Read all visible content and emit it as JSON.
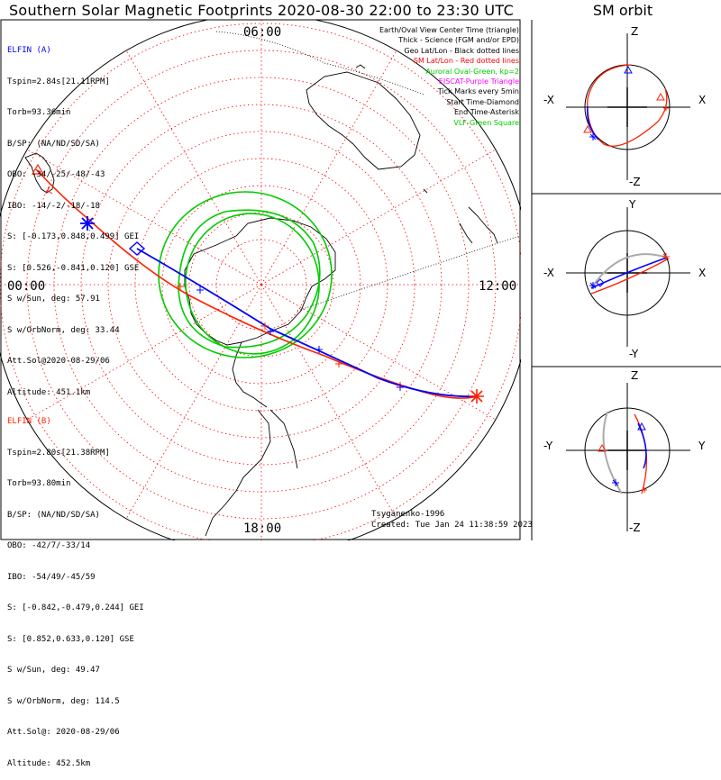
{
  "title": "Southern Solar Magnetic Footprints 2020-08-30 22:00 to 23:30 UTC",
  "side_title": "SM orbit",
  "colors": {
    "probe_a": "#0000ff",
    "probe_b": "#ff2000",
    "oval": "#00cc00",
    "grid": "#ff0000",
    "geo": "#000000",
    "pink": "#ff00ff",
    "orbit_grey": "#aaaaaa"
  },
  "map": {
    "local_time_labels": {
      "top": "06:00",
      "left": "00:00",
      "right": "12:00",
      "bottom": "18:00"
    }
  },
  "elfin_a": {
    "name": "ELFIN (A)",
    "lines": [
      "Tspin=2.84s[21.11RPM]",
      "Torb=93.36min",
      "B/SP: (NA/ND/SD/SA)",
      "OBO: -34/-25/-48/-43",
      "IBO: -14/-2/-18/-18",
      "S: [-0.173,0.848,0.499] GEI",
      "S: [0.526,-0.841,0.120] GSE",
      "S w/Sun, deg: 57.91",
      "S w/OrbNorm, deg: 33.44",
      "Att.Sol@2020-08-29/06",
      "Altitude: 451.1km"
    ]
  },
  "elfin_b": {
    "name": "ELFIN (B)",
    "lines": [
      "Tspin=2.80s[21.38RPM]",
      "Torb=93.80min",
      "B/SP: (NA/ND/SD/SA)",
      "OBO: -42/7/-33/14",
      "IBO: -54/49/-45/59",
      "S: [-0.842,-0.479,0.244] GEI",
      "S: [0.852,0.633,0.120] GSE",
      "S w/Sun, deg: 49.47",
      "S w/OrbNorm, deg: 114.5",
      "Att.Sol@: 2020-08-29/06",
      "Altitude: 452.5km"
    ]
  },
  "legend": [
    {
      "text": "Earth/Oval View Center Time (triangle)",
      "color": "#000000"
    },
    {
      "text": "Thick - Science (FGM and/or EPD)",
      "color": "#000000"
    },
    {
      "text": "Geo Lat/Lon - Black dotted lines",
      "color": "#000000"
    },
    {
      "text": "SM Lat/Lon - Red dotted lines",
      "color": "#ff0000"
    },
    {
      "text": "Auroral Oval-Green, kp=2",
      "color": "#00cc00"
    },
    {
      "text": "EISCAT-Purple Triangle",
      "color": "#ff00ff"
    },
    {
      "text": "Tick Marks every 5min",
      "color": "#000000"
    },
    {
      "text": "Start Time-Diamond",
      "color": "#000000"
    },
    {
      "text": "End Time-Asterisk",
      "color": "#000000"
    },
    {
      "text": "VLF-Green Square",
      "color": "#00cc00"
    }
  ],
  "credit": {
    "author": "Tsyganenko-1996",
    "created": "Created: Tue Jan 24 11:38:59 2023"
  },
  "orbit_panels": [
    {
      "name": "ZX",
      "top": "Z",
      "bottom": "-Z",
      "left": "-X",
      "right": "X"
    },
    {
      "name": "YX",
      "top": "Y",
      "bottom": "-Y",
      "left": "-X",
      "right": "X"
    },
    {
      "name": "ZY",
      "top": "Z",
      "bottom": "-Z",
      "left": "-Y",
      "right": "Y"
    }
  ],
  "chart_data": {
    "type": "polar-map",
    "title": "Southern Solar Magnetic Footprints 2020-08-30 22:00 to 23:30 UTC",
    "mlt_labels": [
      "06:00",
      "00:00",
      "12:00",
      "18:00"
    ],
    "kp": 2,
    "tick_interval_min": 5,
    "series": [
      {
        "name": "ELFIN (A)",
        "color": "#0000ff"
      },
      {
        "name": "ELFIN (B)",
        "color": "#ff2000"
      }
    ]
  }
}
